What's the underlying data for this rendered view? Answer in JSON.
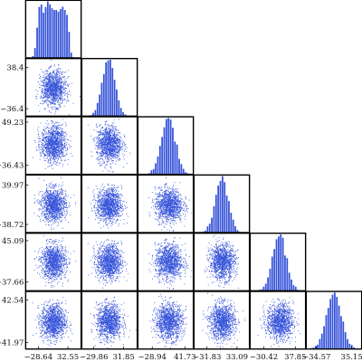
{
  "chart_data": {
    "type": "corner",
    "dimensions": 6,
    "color": "#3653d9",
    "grid": false,
    "points_per_panel": 1200,
    "hist_bins": 26,
    "columns": [
      {
        "xlim": [
          -55,
          60
        ],
        "xticks": [
          -28.64,
          32.55
        ],
        "xtick_labels": [
          "−28.64",
          "32.55"
        ]
      },
      {
        "xlim": [
          -55,
          60
        ],
        "xticks": [
          -29.86,
          31.85
        ],
        "xtick_labels": [
          "−29.86",
          "31.85"
        ]
      },
      {
        "xlim": [
          -60,
          60
        ],
        "xticks": [
          -28.94,
          41.73
        ],
        "xtick_labels": [
          "−28.94",
          "41.73"
        ]
      },
      {
        "xlim": [
          -60,
          60
        ],
        "xticks": [
          -31.83,
          33.09
        ],
        "xtick_labels": [
          "−31.83",
          "33.09"
        ]
      },
      {
        "xlim": [
          -60,
          60
        ],
        "xticks": [
          -30.42,
          37.85
        ],
        "xtick_labels": [
          "−30.42",
          "37.85"
        ]
      },
      {
        "xlim": [
          -55,
          55
        ],
        "xticks": [
          -34.57,
          35.15
        ],
        "xtick_labels": [
          "−34.57",
          "35.15"
        ]
      }
    ],
    "rows": [
      {
        "ylim": null,
        "yticks": [],
        "ytick_labels": []
      },
      {
        "ylim": [
          -50,
          55
        ],
        "yticks": [
          38.4,
          -36.4
        ],
        "ytick_labels": [
          "38.4",
          "−36.4"
        ]
      },
      {
        "ylim": [
          -55,
          60
        ],
        "yticks": [
          49.23,
          -36.43
        ],
        "ytick_labels": [
          "49.23",
          "−36.43"
        ]
      },
      {
        "ylim": [
          -55,
          60
        ],
        "yticks": [
          39.97,
          -38.72
        ],
        "ytick_labels": [
          "39.97",
          "−38.72"
        ]
      },
      {
        "ylim": [
          -55,
          60
        ],
        "yticks": [
          45.09,
          -37.66
        ],
        "ytick_labels": [
          "45.09",
          "−37.66"
        ]
      },
      {
        "ylim": [
          -55,
          60
        ],
        "yticks": [
          42.54,
          -41.97
        ],
        "ytick_labels": [
          "42.54",
          "−41.97"
        ]
      }
    ],
    "diagonal_shape": [
      "bimodal",
      "normal",
      "normal",
      "normal",
      "normal",
      "normal"
    ]
  }
}
